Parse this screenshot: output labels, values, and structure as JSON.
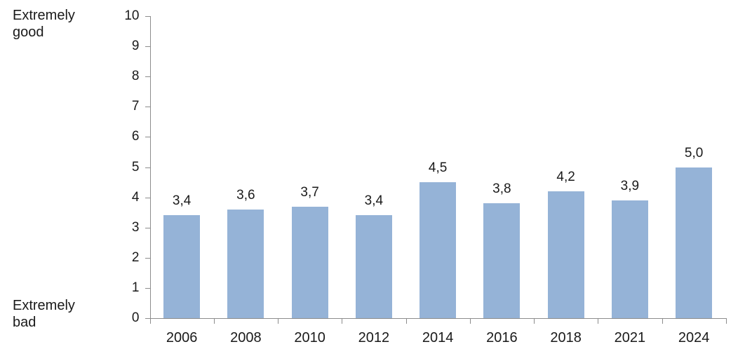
{
  "chart_data": {
    "type": "bar",
    "title": "",
    "xlabel": "",
    "ylabel": "",
    "categories": [
      "2006",
      "2008",
      "2010",
      "2012",
      "2014",
      "2016",
      "2018",
      "2021",
      "2024"
    ],
    "values": [
      3.4,
      3.6,
      3.7,
      3.4,
      4.5,
      3.8,
      4.2,
      3.9,
      5.0
    ],
    "value_labels": [
      "3,4",
      "3,6",
      "3,7",
      "3,4",
      "4,5",
      "3,8",
      "4,2",
      "3,9",
      "5,0"
    ],
    "ylim": [
      0,
      10
    ],
    "ytick_step": 1,
    "ytick_labels": [
      "0",
      "1",
      "2",
      "3",
      "4",
      "5",
      "6",
      "7",
      "8",
      "9",
      "10"
    ],
    "grid": false,
    "legend": "none",
    "annotations": {
      "scale_max_label": "Extremely good",
      "scale_min_label": "Extremely bad"
    },
    "colors": {
      "bar": "#95B3D7",
      "axis": "#8C8C8C",
      "text": "#1A1A1A",
      "background": "#FFFFFF"
    }
  }
}
